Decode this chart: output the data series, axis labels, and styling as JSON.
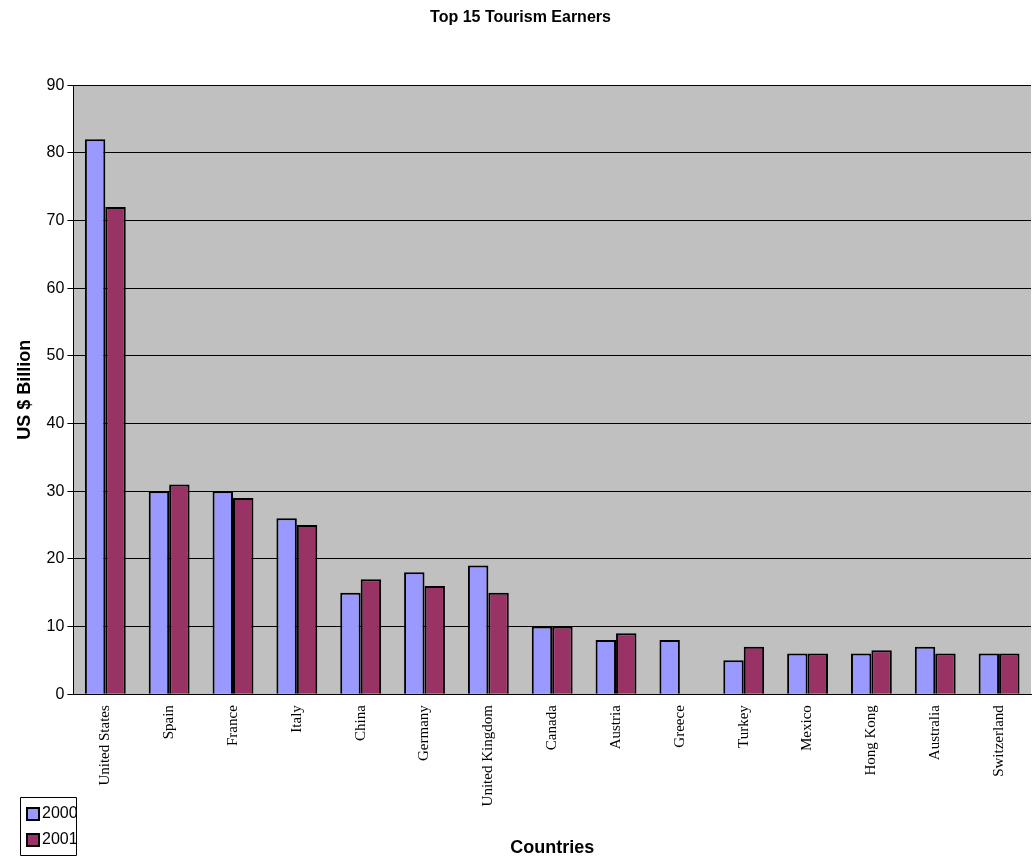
{
  "chart_data": {
    "type": "bar",
    "title": "Top 15 Tourism Earners",
    "xlabel": "Countries",
    "ylabel": "US $ Billion",
    "categories": [
      "United States",
      "Spain",
      "France",
      "Italy",
      "China",
      "Germany",
      "United Kingdom",
      "Canada",
      "Austria",
      "Greece",
      "Turkey",
      "Mexico",
      "Hong Kong",
      "Australia",
      "Switzerland"
    ],
    "series": [
      {
        "name": "2000",
        "color": "#9999ff",
        "values": [
          82,
          30,
          30,
          26,
          15,
          18,
          19,
          10,
          8,
          8,
          5,
          6,
          6,
          7,
          6
        ]
      },
      {
        "name": "2001",
        "color": "#993366",
        "values": [
          72,
          31,
          29,
          25,
          17,
          16,
          15,
          10,
          9,
          null,
          7,
          6,
          6.5,
          6,
          6
        ]
      }
    ],
    "ylim": [
      0,
      90
    ],
    "yticks": [
      0,
      10,
      20,
      30,
      40,
      50,
      60,
      70,
      80,
      90
    ],
    "grid": "y",
    "legend": "bottom left"
  }
}
